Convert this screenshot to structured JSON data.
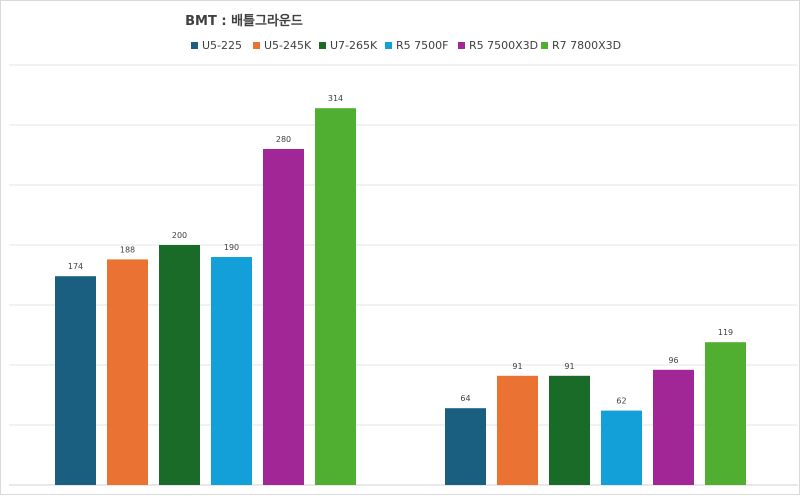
{
  "chart_data": {
    "type": "bar",
    "title": "BMT : 배틀그라운드",
    "categories": [
      "",
      ""
    ],
    "ylim": [
      0,
      350
    ],
    "grid": true,
    "legend_position": "top",
    "series": [
      {
        "name": "U5-225",
        "color": "#1a5e80",
        "values": [
          174,
          64
        ]
      },
      {
        "name": "U5-245K",
        "color": "#ea7233",
        "values": [
          188,
          91
        ]
      },
      {
        "name": "U7-265K",
        "color": "#1b6b28",
        "values": [
          200,
          91
        ]
      },
      {
        "name": "R5 7500F",
        "color": "#139fd7",
        "values": [
          190,
          62
        ]
      },
      {
        "name": "R5 7500X3D",
        "color": "#a12796",
        "values": [
          280,
          96
        ]
      },
      {
        "name": "R7 7800X3D",
        "color": "#50ae30",
        "values": [
          314,
          119
        ]
      }
    ]
  }
}
